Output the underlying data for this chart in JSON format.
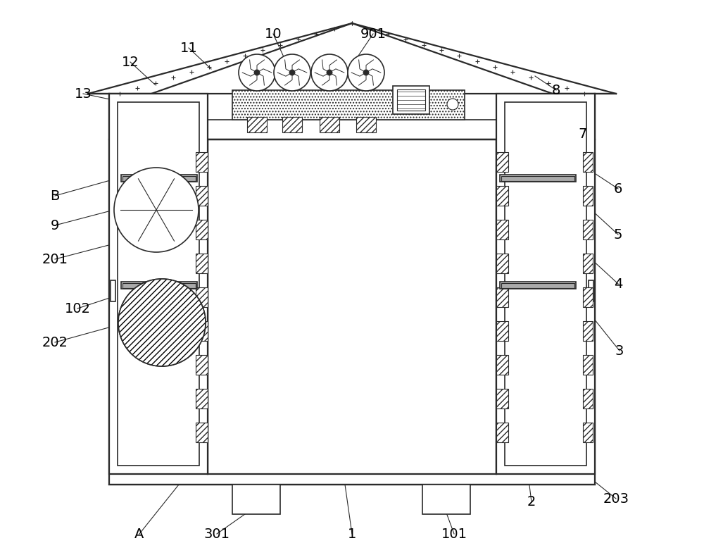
{
  "bg_color": "#ffffff",
  "line_color": "#2a2a2a",
  "fig_width": 10.0,
  "fig_height": 7.88,
  "label_color": "#000000",
  "lw_main": 1.6,
  "lw_med": 1.2,
  "lw_thin": 0.8
}
